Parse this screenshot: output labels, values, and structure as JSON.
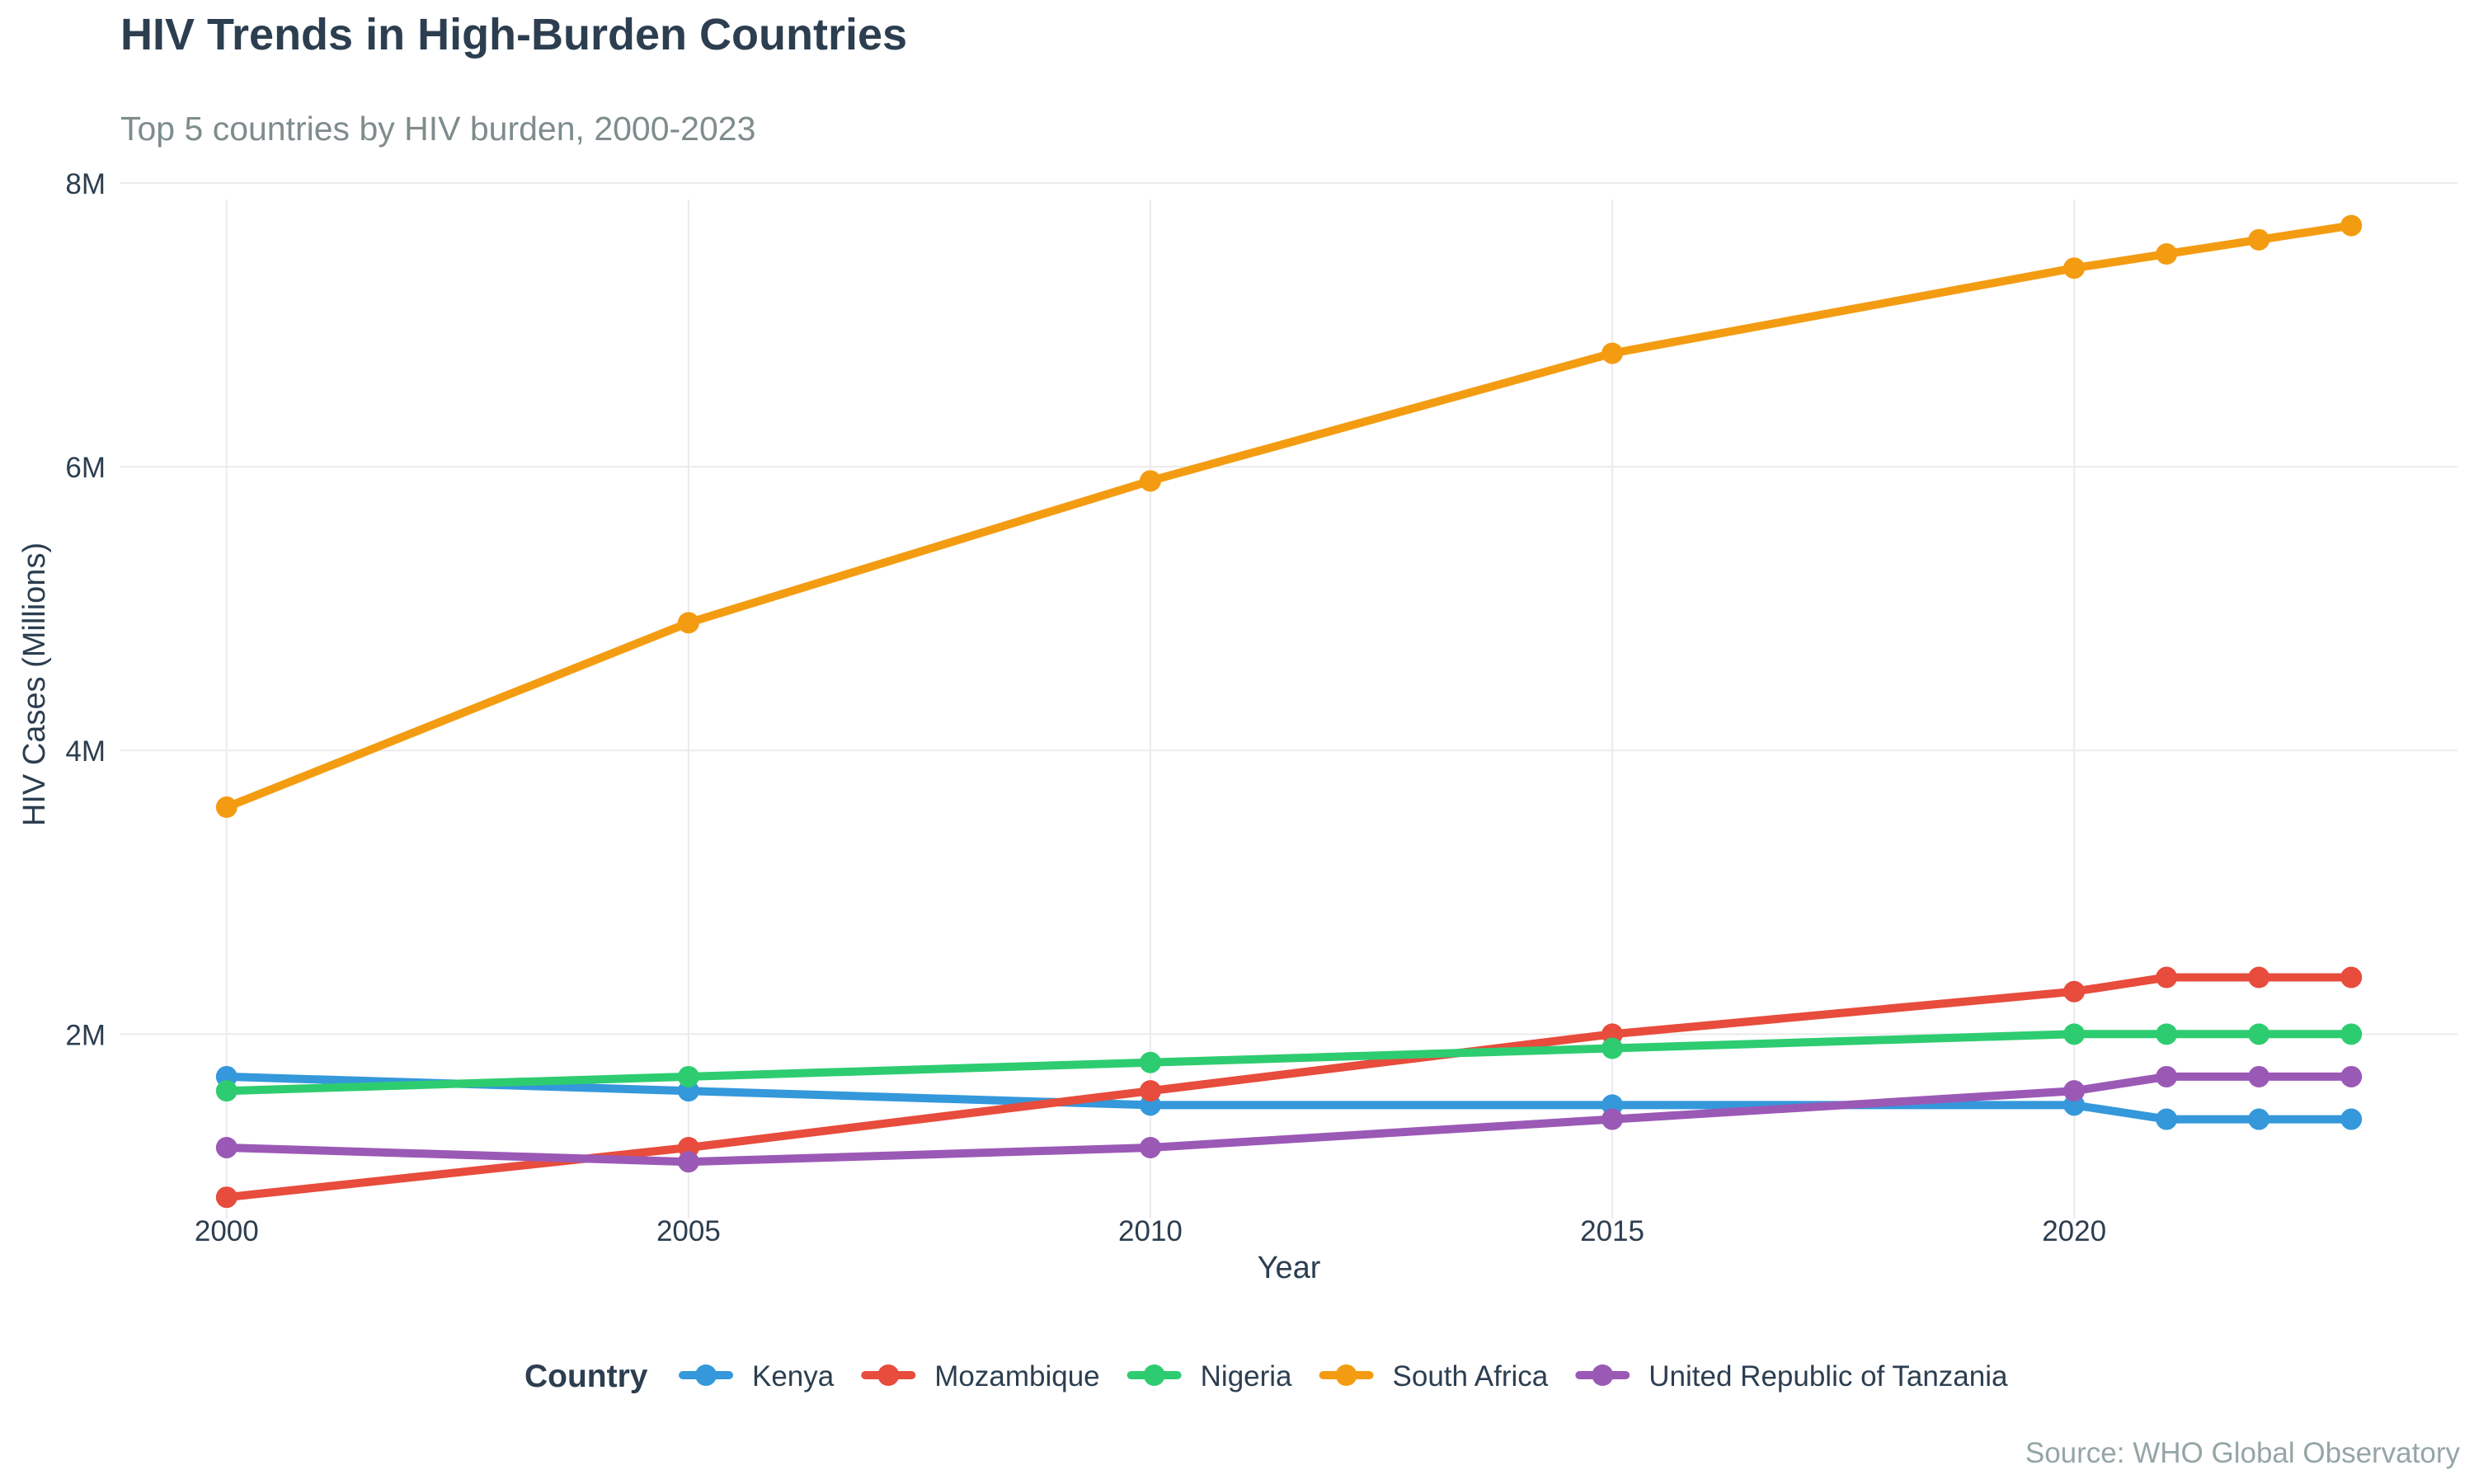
{
  "chart_data": {
    "type": "line",
    "title": "HIV Trends in High-Burden Countries",
    "subtitle": "Top 5 countries by HIV burden, 2000-2023",
    "xlabel": "Year",
    "ylabel": "HIV Cases (Millions)",
    "caption": "Source: WHO Global Observatory",
    "legend_title": "Country",
    "legend_position": "bottom",
    "grid": true,
    "x": [
      2000,
      2005,
      2010,
      2015,
      2020,
      2021,
      2022,
      2023
    ],
    "x_ticks": [
      2000,
      2005,
      2010,
      2015,
      2020
    ],
    "x_tick_labels": [
      "2000",
      "2005",
      "2010",
      "2015",
      "2020"
    ],
    "xlim": [
      1998.85,
      2024.15
    ],
    "y_ticks": [
      2,
      4,
      6,
      8
    ],
    "y_tick_labels": [
      "2M",
      "4M",
      "6M",
      "8M"
    ],
    "ylim": [
      0.7,
      8.0
    ],
    "series": [
      {
        "name": "Kenya",
        "color": "#3498db",
        "values": [
          1.7,
          1.6,
          1.5,
          1.5,
          1.5,
          1.4,
          1.4,
          1.4
        ]
      },
      {
        "name": "Mozambique",
        "color": "#e74c3c",
        "values": [
          0.85,
          1.2,
          1.6,
          2.0,
          2.3,
          2.4,
          2.4,
          2.4
        ]
      },
      {
        "name": "Nigeria",
        "color": "#2ecc71",
        "values": [
          1.6,
          1.7,
          1.8,
          1.9,
          2.0,
          2.0,
          2.0,
          2.0
        ]
      },
      {
        "name": "South Africa",
        "color": "#f39c12",
        "values": [
          3.6,
          4.9,
          5.9,
          6.8,
          7.4,
          7.5,
          7.6,
          7.7
        ]
      },
      {
        "name": "United Republic of Tanzania",
        "color": "#9b59b6",
        "values": [
          1.2,
          1.1,
          1.2,
          1.4,
          1.6,
          1.7,
          1.7,
          1.7
        ]
      }
    ]
  }
}
